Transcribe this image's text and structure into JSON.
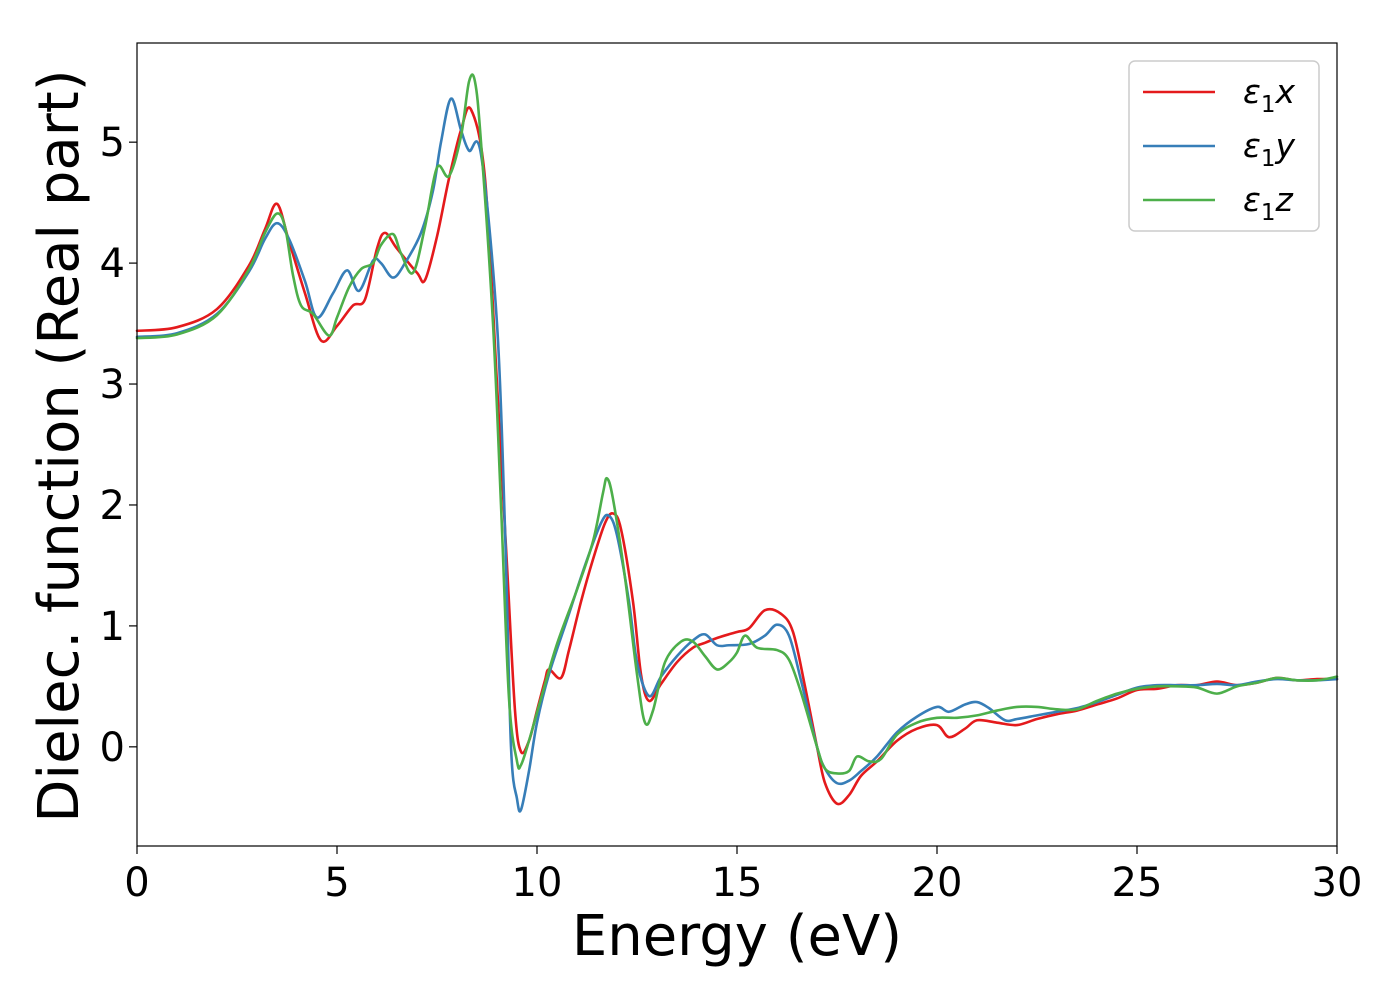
{
  "chart_data": {
    "type": "line",
    "title": "",
    "xlabel": "Energy (eV)",
    "ylabel": "Dielec. function (Real part)",
    "xlim": [
      0,
      30
    ],
    "ylim": [
      -0.82,
      5.82
    ],
    "xticks": [
      0,
      5,
      10,
      15,
      20,
      25,
      30
    ],
    "yticks": [
      0,
      1,
      2,
      3,
      4,
      5
    ],
    "grid": false,
    "legend_position": "top-right",
    "series": [
      {
        "name": "ε₁x",
        "legend_main": "ε",
        "legend_sub": "1",
        "legend_suffix": "x",
        "color": "#e41a1c",
        "points": [
          [
            0,
            3.44
          ],
          [
            1,
            3.47
          ],
          [
            2,
            3.62
          ],
          [
            2.8,
            3.98
          ],
          [
            3.2,
            4.28
          ],
          [
            3.5,
            4.49
          ],
          [
            3.8,
            4.18
          ],
          [
            4.2,
            3.75
          ],
          [
            4.6,
            3.36
          ],
          [
            5.0,
            3.48
          ],
          [
            5.4,
            3.65
          ],
          [
            5.7,
            3.7
          ],
          [
            6.0,
            4.12
          ],
          [
            6.2,
            4.25
          ],
          [
            6.5,
            4.12
          ],
          [
            7.0,
            3.92
          ],
          [
            7.2,
            3.86
          ],
          [
            7.5,
            4.22
          ],
          [
            7.8,
            4.7
          ],
          [
            8.1,
            5.1
          ],
          [
            8.35,
            5.27
          ],
          [
            8.7,
            4.7
          ],
          [
            9.0,
            3.0
          ],
          [
            9.25,
            1.5
          ],
          [
            9.45,
            0.3
          ],
          [
            9.6,
            -0.04
          ],
          [
            9.8,
            0.05
          ],
          [
            10.0,
            0.3
          ],
          [
            10.2,
            0.55
          ],
          [
            10.3,
            0.64
          ],
          [
            10.6,
            0.57
          ],
          [
            10.8,
            0.8
          ],
          [
            11.1,
            1.2
          ],
          [
            11.4,
            1.55
          ],
          [
            11.7,
            1.85
          ],
          [
            11.9,
            1.93
          ],
          [
            12.1,
            1.8
          ],
          [
            12.4,
            1.2
          ],
          [
            12.6,
            0.6
          ],
          [
            12.8,
            0.38
          ],
          [
            13.1,
            0.52
          ],
          [
            13.5,
            0.7
          ],
          [
            13.9,
            0.82
          ],
          [
            14.2,
            0.86
          ],
          [
            14.5,
            0.9
          ],
          [
            15.0,
            0.95
          ],
          [
            15.3,
            0.98
          ],
          [
            15.7,
            1.13
          ],
          [
            16.1,
            1.1
          ],
          [
            16.4,
            0.95
          ],
          [
            16.7,
            0.5
          ],
          [
            17.0,
            0.0
          ],
          [
            17.2,
            -0.3
          ],
          [
            17.5,
            -0.47
          ],
          [
            17.8,
            -0.4
          ],
          [
            18.1,
            -0.24
          ],
          [
            18.5,
            -0.12
          ],
          [
            19.0,
            0.05
          ],
          [
            19.5,
            0.15
          ],
          [
            20.0,
            0.18
          ],
          [
            20.3,
            0.08
          ],
          [
            20.7,
            0.15
          ],
          [
            21.0,
            0.22
          ],
          [
            21.5,
            0.2
          ],
          [
            22.0,
            0.18
          ],
          [
            22.5,
            0.23
          ],
          [
            23.0,
            0.27
          ],
          [
            23.5,
            0.3
          ],
          [
            24.0,
            0.35
          ],
          [
            24.5,
            0.4
          ],
          [
            25.0,
            0.47
          ],
          [
            25.5,
            0.48
          ],
          [
            26.0,
            0.51
          ],
          [
            26.5,
            0.51
          ],
          [
            27.0,
            0.54
          ],
          [
            27.5,
            0.51
          ],
          [
            28.0,
            0.53
          ],
          [
            28.5,
            0.57
          ],
          [
            29.0,
            0.55
          ],
          [
            29.5,
            0.56
          ],
          [
            30.0,
            0.56
          ]
        ]
      },
      {
        "name": "ε₁y",
        "legend_main": "ε",
        "legend_sub": "1",
        "legend_suffix": "y",
        "color": "#377eb8",
        "points": [
          [
            0,
            3.39
          ],
          [
            1,
            3.42
          ],
          [
            2,
            3.58
          ],
          [
            2.8,
            3.93
          ],
          [
            3.2,
            4.2
          ],
          [
            3.5,
            4.33
          ],
          [
            3.8,
            4.2
          ],
          [
            4.2,
            3.85
          ],
          [
            4.5,
            3.55
          ],
          [
            4.9,
            3.75
          ],
          [
            5.25,
            3.94
          ],
          [
            5.55,
            3.77
          ],
          [
            5.9,
            4.02
          ],
          [
            6.1,
            4.0
          ],
          [
            6.4,
            3.88
          ],
          [
            6.7,
            4.0
          ],
          [
            7.1,
            4.25
          ],
          [
            7.4,
            4.6
          ],
          [
            7.6,
            5.0
          ],
          [
            7.85,
            5.36
          ],
          [
            8.1,
            5.1
          ],
          [
            8.3,
            4.93
          ],
          [
            8.6,
            4.9
          ],
          [
            9.0,
            3.5
          ],
          [
            9.2,
            1.8
          ],
          [
            9.35,
            0.0
          ],
          [
            9.5,
            -0.43
          ],
          [
            9.6,
            -0.52
          ],
          [
            9.8,
            -0.2
          ],
          [
            10.0,
            0.2
          ],
          [
            10.3,
            0.6
          ],
          [
            10.8,
            1.1
          ],
          [
            11.2,
            1.5
          ],
          [
            11.6,
            1.85
          ],
          [
            11.8,
            1.91
          ],
          [
            12.0,
            1.75
          ],
          [
            12.3,
            1.2
          ],
          [
            12.5,
            0.7
          ],
          [
            12.8,
            0.42
          ],
          [
            13.1,
            0.58
          ],
          [
            13.5,
            0.75
          ],
          [
            13.9,
            0.88
          ],
          [
            14.2,
            0.93
          ],
          [
            14.5,
            0.84
          ],
          [
            14.8,
            0.84
          ],
          [
            15.3,
            0.85
          ],
          [
            15.7,
            0.92
          ],
          [
            16.0,
            1.01
          ],
          [
            16.3,
            0.92
          ],
          [
            16.6,
            0.55
          ],
          [
            17.0,
            0.0
          ],
          [
            17.2,
            -0.18
          ],
          [
            17.5,
            -0.3
          ],
          [
            17.8,
            -0.28
          ],
          [
            18.1,
            -0.2
          ],
          [
            18.5,
            -0.08
          ],
          [
            19.0,
            0.12
          ],
          [
            19.5,
            0.25
          ],
          [
            20.0,
            0.33
          ],
          [
            20.3,
            0.29
          ],
          [
            20.7,
            0.35
          ],
          [
            21.0,
            0.37
          ],
          [
            21.3,
            0.32
          ],
          [
            21.7,
            0.22
          ],
          [
            22.0,
            0.23
          ],
          [
            22.5,
            0.26
          ],
          [
            23.0,
            0.29
          ],
          [
            23.5,
            0.32
          ],
          [
            24.0,
            0.37
          ],
          [
            24.5,
            0.43
          ],
          [
            25.0,
            0.49
          ],
          [
            25.5,
            0.51
          ],
          [
            26.0,
            0.51
          ],
          [
            26.5,
            0.51
          ],
          [
            27.0,
            0.52
          ],
          [
            27.5,
            0.51
          ],
          [
            28.0,
            0.54
          ],
          [
            28.5,
            0.56
          ],
          [
            29.0,
            0.55
          ],
          [
            29.5,
            0.55
          ],
          [
            30.0,
            0.56
          ]
        ]
      },
      {
        "name": "ε₁z",
        "legend_main": "ε",
        "legend_sub": "1",
        "legend_suffix": "z",
        "color": "#4daf4a",
        "points": [
          [
            0,
            3.38
          ],
          [
            1,
            3.41
          ],
          [
            2,
            3.57
          ],
          [
            2.8,
            3.95
          ],
          [
            3.2,
            4.25
          ],
          [
            3.5,
            4.41
          ],
          [
            3.7,
            4.3
          ],
          [
            3.9,
            3.9
          ],
          [
            4.1,
            3.65
          ],
          [
            4.4,
            3.58
          ],
          [
            4.8,
            3.4
          ],
          [
            5.0,
            3.55
          ],
          [
            5.3,
            3.8
          ],
          [
            5.6,
            3.95
          ],
          [
            5.9,
            4.0
          ],
          [
            6.1,
            4.15
          ],
          [
            6.4,
            4.24
          ],
          [
            6.6,
            4.08
          ],
          [
            6.9,
            3.92
          ],
          [
            7.2,
            4.3
          ],
          [
            7.5,
            4.79
          ],
          [
            7.8,
            4.72
          ],
          [
            8.1,
            5.05
          ],
          [
            8.3,
            5.5
          ],
          [
            8.45,
            5.5
          ],
          [
            8.6,
            5.0
          ],
          [
            8.9,
            3.5
          ],
          [
            9.1,
            2.0
          ],
          [
            9.3,
            0.4
          ],
          [
            9.5,
            -0.12
          ],
          [
            9.6,
            -0.15
          ],
          [
            9.8,
            0.05
          ],
          [
            10.1,
            0.4
          ],
          [
            10.5,
            0.85
          ],
          [
            11.0,
            1.3
          ],
          [
            11.4,
            1.7
          ],
          [
            11.65,
            2.1
          ],
          [
            11.75,
            2.22
          ],
          [
            11.9,
            2.05
          ],
          [
            12.2,
            1.4
          ],
          [
            12.5,
            0.6
          ],
          [
            12.7,
            0.2
          ],
          [
            12.9,
            0.3
          ],
          [
            13.2,
            0.7
          ],
          [
            13.6,
            0.87
          ],
          [
            13.9,
            0.87
          ],
          [
            14.2,
            0.75
          ],
          [
            14.5,
            0.64
          ],
          [
            14.8,
            0.7
          ],
          [
            15.0,
            0.78
          ],
          [
            15.2,
            0.92
          ],
          [
            15.5,
            0.82
          ],
          [
            16.0,
            0.8
          ],
          [
            16.3,
            0.72
          ],
          [
            16.6,
            0.45
          ],
          [
            17.0,
            0.0
          ],
          [
            17.2,
            -0.18
          ],
          [
            17.5,
            -0.22
          ],
          [
            17.8,
            -0.2
          ],
          [
            18.0,
            -0.08
          ],
          [
            18.3,
            -0.12
          ],
          [
            18.6,
            -0.1
          ],
          [
            19.0,
            0.1
          ],
          [
            19.5,
            0.2
          ],
          [
            20.0,
            0.24
          ],
          [
            20.5,
            0.24
          ],
          [
            21.0,
            0.26
          ],
          [
            21.5,
            0.3
          ],
          [
            22.0,
            0.33
          ],
          [
            22.5,
            0.33
          ],
          [
            23.0,
            0.31
          ],
          [
            23.5,
            0.31
          ],
          [
            24.0,
            0.38
          ],
          [
            24.5,
            0.44
          ],
          [
            25.0,
            0.48
          ],
          [
            25.5,
            0.5
          ],
          [
            26.0,
            0.5
          ],
          [
            26.5,
            0.49
          ],
          [
            27.0,
            0.44
          ],
          [
            27.5,
            0.5
          ],
          [
            28.0,
            0.53
          ],
          [
            28.5,
            0.57
          ],
          [
            29.0,
            0.55
          ],
          [
            29.5,
            0.55
          ],
          [
            30.0,
            0.58
          ]
        ]
      }
    ]
  }
}
